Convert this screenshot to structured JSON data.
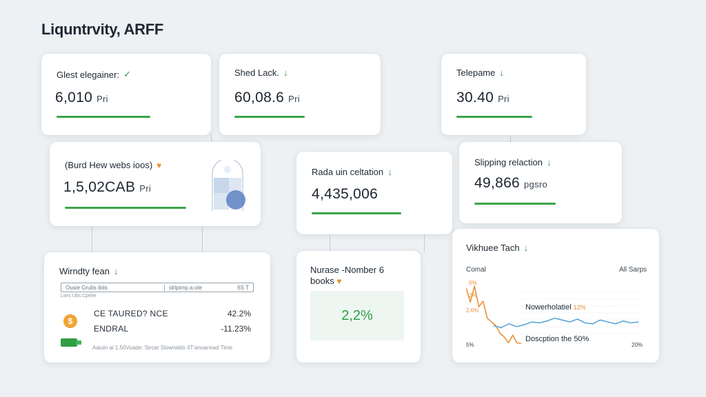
{
  "page": {
    "title": "Liquntrvity, ARFF"
  },
  "cards": [
    {
      "label": "Glest elegainer:",
      "value": "6,010",
      "unit": "Pri"
    },
    {
      "label": "Shed Lack.",
      "value": "60,08.6",
      "unit": "Pri"
    },
    {
      "label": "Telepame",
      "value": "30.40",
      "unit": "Pri"
    },
    {
      "label": "(Burd Hew webs ioos)",
      "value": "1,5,02CAB",
      "unit": "Pri"
    },
    {
      "label": "Rada uin celtation",
      "value": "4,435,006",
      "unit": ""
    },
    {
      "label": "Slipping relaction",
      "value": "49,866",
      "unit": "pgsro"
    }
  ],
  "table_card": {
    "label": "Wirndty fean",
    "header": [
      "Ousie Grubs ibiis",
      "slrtpimp.a.ote",
      "6S T"
    ],
    "subheader": "Lwrs Ubs Cpelte",
    "rows": [
      {
        "label": "CE TAURED? NCE",
        "value": "42.2%",
        "icon": "coin-icon"
      },
      {
        "label": "ENDRAL",
        "value": "-11.23%",
        "icon": "cash-icon"
      }
    ],
    "footer": "Aaiuin ai 1.50Vuade: Sircar Slowrwlds 4T'anoanoad Time"
  },
  "nurse_card": {
    "label": "Nurase -Nomber 6 books",
    "value": "2,2%"
  },
  "chart_card": {
    "label": "Vikhuee Tach",
    "left_label": "Comal",
    "right_label": "All Sarps",
    "annotation_top": "Nowerholatiel",
    "annotation_top_value": "12%",
    "annotation_bottom": "Doscption the 50%",
    "y_ticks": [
      "0%",
      "2%",
      "2.6%"
    ],
    "x_ticks": [
      "5%",
      "20%"
    ],
    "chart_data": {
      "type": "line",
      "series": [
        {
          "color": "#e8913a",
          "values": [
            60,
            45,
            62,
            40,
            46,
            28,
            24,
            20,
            12,
            8,
            2,
            10,
            2,
            1
          ]
        },
        {
          "color": "#5aa6d8",
          "values": [
            20,
            18,
            22,
            19,
            21,
            24,
            23,
            25,
            28,
            26,
            24,
            27,
            23,
            22,
            26,
            24,
            22,
            25,
            23,
            24
          ]
        }
      ],
      "ylim": [
        0,
        70
      ]
    }
  }
}
